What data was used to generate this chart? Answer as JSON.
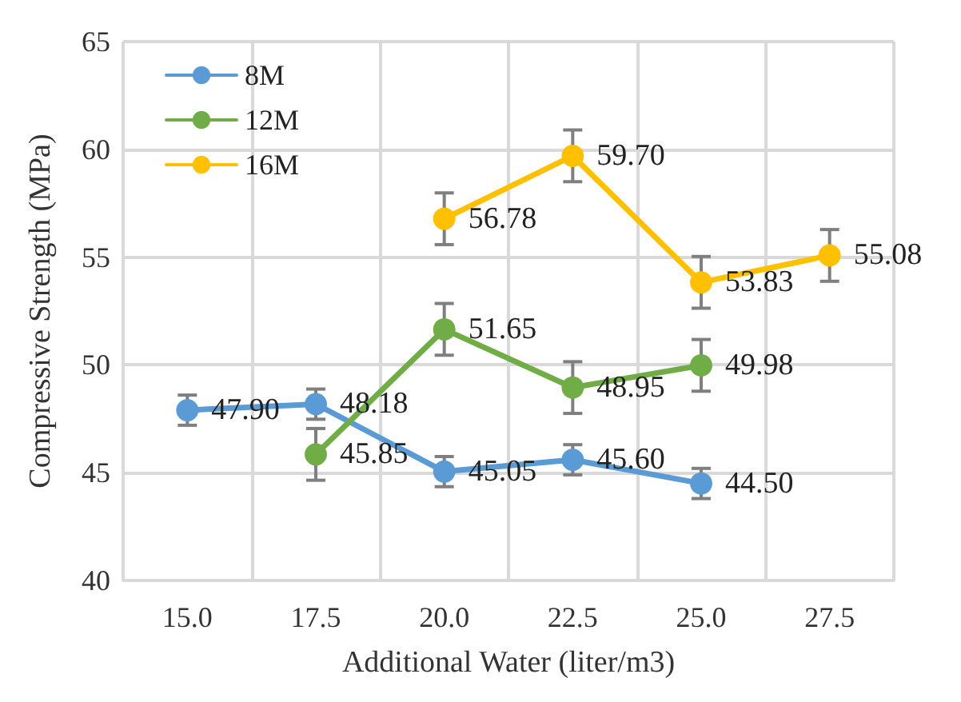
{
  "chart_data": {
    "type": "line",
    "xlabel": "Additional Water (liter/m3)",
    "ylabel": "Compressive Strength (MPa)",
    "categories": [
      "15.0",
      "17.5",
      "20.0",
      "22.5",
      "25.0",
      "27.5"
    ],
    "series": [
      {
        "name": "8M",
        "color": "#5b9bd5",
        "values": [
          47.9,
          48.18,
          45.05,
          45.6,
          44.5,
          null
        ],
        "value_labels": [
          "47.90",
          "48.18",
          "45.05",
          "45.60",
          "44.50",
          null
        ],
        "errors": [
          0.7,
          0.7,
          0.7,
          0.7,
          0.7,
          null
        ]
      },
      {
        "name": "12M",
        "color": "#70ad47",
        "values": [
          null,
          45.85,
          51.65,
          48.95,
          49.98,
          null
        ],
        "value_labels": [
          null,
          "45.85",
          "51.65",
          "48.95",
          "49.98",
          null
        ],
        "errors": [
          null,
          1.2,
          1.2,
          1.2,
          1.2,
          null
        ]
      },
      {
        "name": "16M",
        "color": "#ffc000",
        "values": [
          null,
          null,
          56.78,
          59.7,
          53.83,
          55.08
        ],
        "value_labels": [
          null,
          null,
          "56.78",
          "59.70",
          "53.83",
          "55.08"
        ],
        "errors": [
          null,
          null,
          1.2,
          1.2,
          1.2,
          1.2
        ]
      }
    ],
    "ylim": [
      40,
      65
    ],
    "yticks": [
      40,
      45,
      50,
      55,
      60,
      65
    ],
    "grid": true,
    "legend": "top left",
    "marker": "circle",
    "line_style": "solid"
  }
}
